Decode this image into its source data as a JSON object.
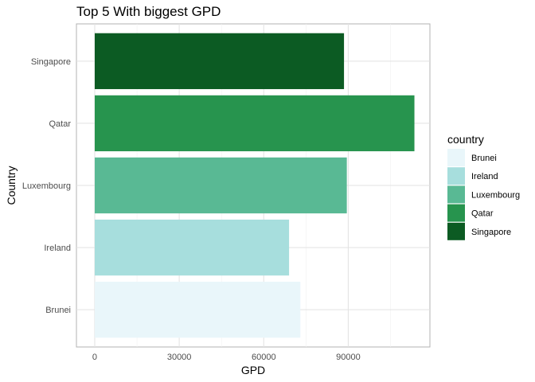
{
  "chart_data": {
    "type": "bar",
    "orientation": "horizontal",
    "title": "Top 5 With biggest GPD",
    "xlabel": "GPD",
    "ylabel": "Country",
    "categories": [
      "Brunei",
      "Ireland",
      "Luxembourg",
      "Qatar",
      "Singapore"
    ],
    "values": [
      73000,
      69000,
      89500,
      113500,
      88500
    ],
    "colors": [
      "#e9f6fa",
      "#a7dedd",
      "#59b994",
      "#27944e",
      "#0c5b23"
    ],
    "xlim": [
      -6500,
      119000
    ],
    "xticks": [
      0,
      30000,
      60000,
      90000
    ],
    "xtick_labels": [
      "0",
      "30000",
      "60000",
      "90000"
    ],
    "grid": true,
    "legend": {
      "title": "country",
      "position": "right",
      "items": [
        "Brunei",
        "Ireland",
        "Luxembourg",
        "Qatar",
        "Singapore"
      ]
    }
  }
}
